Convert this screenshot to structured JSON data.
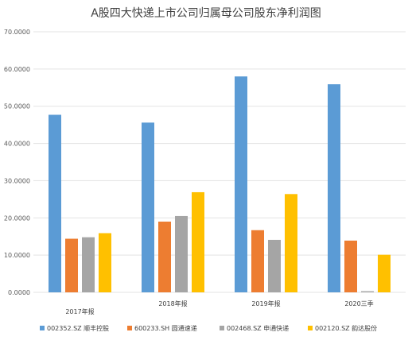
{
  "chart_data": {
    "type": "bar",
    "title": "A股四大快递上市公司归属母公司股东净利润图",
    "categories": [
      "2017年报",
      "2018年报",
      "2019年报",
      "2020三季"
    ],
    "ylim": [
      0,
      70
    ],
    "yticks": [
      0,
      10,
      20,
      30,
      40,
      50,
      60,
      70
    ],
    "ytick_labels": [
      "0.0000",
      "10.0000",
      "20.0000",
      "30.0000",
      "40.0000",
      "50.0000",
      "60.0000",
      "70.0000"
    ],
    "grid": true,
    "legend": "bottom",
    "series": [
      {
        "name": "002352.SZ 顺丰控股",
        "color": "#5b9bd5",
        "values": [
          47.7,
          45.6,
          58.0,
          55.9
        ]
      },
      {
        "name": "600233.SH 圆通速递",
        "color": "#ed7d31",
        "values": [
          14.4,
          19.0,
          16.7,
          13.9
        ]
      },
      {
        "name": "002468.SZ 申通快递",
        "color": "#a5a5a5",
        "values": [
          14.8,
          20.5,
          14.1,
          0.3
        ]
      },
      {
        "name": "002120.SZ 韵达股份",
        "color": "#ffc000",
        "values": [
          15.9,
          26.9,
          26.4,
          10.1
        ]
      }
    ]
  }
}
